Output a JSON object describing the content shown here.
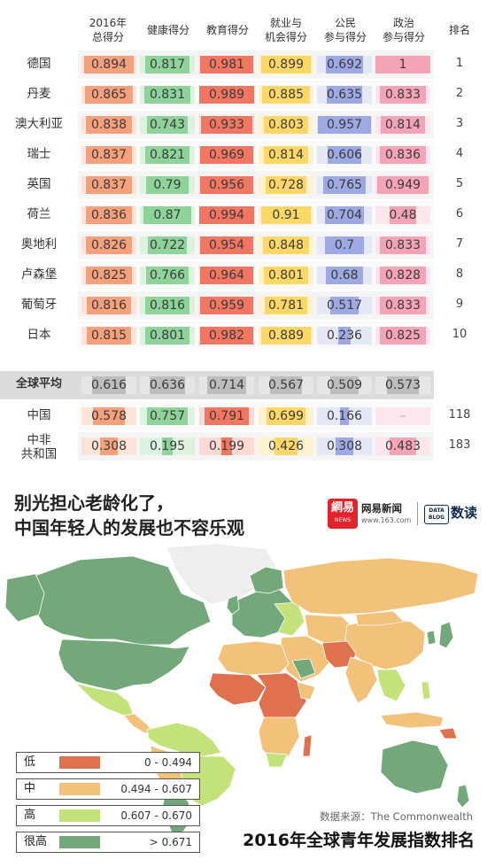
{
  "headers": {
    "overall": "2016年\n总得分",
    "health": "健康得分",
    "education": "教育得分",
    "employment": "就业与\n机会得分",
    "civic": "公民\n参与得分",
    "political": "政治\n参与得分",
    "rank": "排名"
  },
  "columns": [
    {
      "key": "overall",
      "color": "#f6a07c",
      "track": "#fde4d8"
    },
    {
      "key": "health",
      "color": "#8ed39a",
      "track": "#ddf3e0"
    },
    {
      "key": "education",
      "color": "#f27762",
      "track": "#fddbd4"
    },
    {
      "key": "employment",
      "color": "#fed766",
      "track": "#fff3cf"
    },
    {
      "key": "civic",
      "color": "#9ea8e2",
      "track": "#e5e8f7"
    },
    {
      "key": "political",
      "color": "#f4a4b6",
      "track": "#fde6ec"
    }
  ],
  "rows": [
    {
      "country": "德国",
      "values": [
        0.894,
        0.817,
        0.981,
        0.899,
        0.692,
        1
      ],
      "labels": [
        "0.894",
        "0.817",
        "0.981",
        "0.899",
        "0.692",
        "1"
      ],
      "rank": "1"
    },
    {
      "country": "丹麦",
      "values": [
        0.865,
        0.831,
        0.989,
        0.885,
        0.635,
        0.833
      ],
      "labels": [
        "0.865",
        "0.831",
        "0.989",
        "0.885",
        "0.635",
        "0.833"
      ],
      "rank": "2"
    },
    {
      "country": "澳大利亚",
      "values": [
        0.838,
        0.743,
        0.933,
        0.803,
        0.957,
        0.814
      ],
      "labels": [
        "0.838",
        "0.743",
        "0.933",
        "0.803",
        "0.957",
        "0.814"
      ],
      "rank": "3"
    },
    {
      "country": "瑞士",
      "values": [
        0.837,
        0.821,
        0.969,
        0.814,
        0.606,
        0.836
      ],
      "labels": [
        "0.837",
        "0.821",
        "0.969",
        "0.814",
        "0.606",
        "0.836"
      ],
      "rank": "4"
    },
    {
      "country": "英国",
      "values": [
        0.837,
        0.79,
        0.956,
        0.728,
        0.765,
        0.949
      ],
      "labels": [
        "0.837",
        "0.79",
        "0.956",
        "0.728",
        "0.765",
        "0.949"
      ],
      "rank": "5"
    },
    {
      "country": "荷兰",
      "values": [
        0.836,
        0.87,
        0.994,
        0.91,
        0.704,
        0.48
      ],
      "labels": [
        "0.836",
        "0.87",
        "0.994",
        "0.91",
        "0.704",
        "0.48"
      ],
      "rank": "6"
    },
    {
      "country": "奥地利",
      "values": [
        0.826,
        0.722,
        0.954,
        0.848,
        0.7,
        0.833
      ],
      "labels": [
        "0.826",
        "0.722",
        "0.954",
        "0.848",
        "0.7",
        "0.833"
      ],
      "rank": "7"
    },
    {
      "country": "卢森堡",
      "values": [
        0.825,
        0.766,
        0.964,
        0.801,
        0.68,
        0.828
      ],
      "labels": [
        "0.825",
        "0.766",
        "0.964",
        "0.801",
        "0.68",
        "0.828"
      ],
      "rank": "8"
    },
    {
      "country": "葡萄牙",
      "values": [
        0.816,
        0.816,
        0.959,
        0.781,
        0.517,
        0.833
      ],
      "labels": [
        "0.816",
        "0.816",
        "0.959",
        "0.781",
        "0.517",
        "0.833"
      ],
      "rank": "9"
    },
    {
      "country": "日本",
      "values": [
        0.815,
        0.801,
        0.982,
        0.889,
        0.236,
        0.825
      ],
      "labels": [
        "0.815",
        "0.801",
        "0.982",
        "0.889",
        "0.236",
        "0.825"
      ],
      "rank": "10"
    },
    {
      "country": "全球平均",
      "values": [
        0.616,
        0.636,
        0.714,
        0.567,
        0.509,
        0.573
      ],
      "labels": [
        "0.616",
        "0.636",
        "0.714",
        "0.567",
        "0.509",
        "0.573"
      ],
      "rank": "",
      "style": "average"
    },
    {
      "country": "中国",
      "values": [
        0.578,
        0.757,
        0.791,
        0.699,
        0.166,
        null
      ],
      "labels": [
        "0.578",
        "0.757",
        "0.791",
        "0.699",
        "0.166",
        "–"
      ],
      "rank": "118"
    },
    {
      "country": "中非\n共和国",
      "values": [
        0.308,
        0.195,
        0.199,
        0.426,
        0.308,
        0.483
      ],
      "labels": [
        "0.308",
        "0.195",
        "0.199",
        "0.426",
        "0.308",
        "0.483"
      ],
      "rank": "183"
    }
  ],
  "headline": {
    "line1": "别光担心老龄化了，",
    "line2": "中国年轻人的发展也不容乐观"
  },
  "brand": {
    "logo_text": "網易",
    "logo_small": "NEWS",
    "name": "网易新闻",
    "url": "www.163.com",
    "databox": "DATA\nBLOG",
    "read": "数读"
  },
  "legend": [
    {
      "label": "低",
      "range": "0 - 0.494",
      "color": "#e0714f"
    },
    {
      "label": "中",
      "range": "0.494 - 0.607",
      "color": "#f2c27a"
    },
    {
      "label": "高",
      "range": "0.607 - 0.670",
      "color": "#c4e27a"
    },
    {
      "label": "很高",
      "range": "> 0.671",
      "color": "#73a97a"
    }
  ],
  "source": "数据来源：The Commonwealth",
  "bottom_title": "2016年全球青年发展指数排名",
  "map_colors": {
    "low": "#e0714f",
    "mid": "#f2c27a",
    "high": "#c4e27a",
    "vhigh": "#73a97a",
    "nodata": "#eeeeee"
  },
  "chart_data": {
    "type": "table",
    "columns": [
      "2016年总得分",
      "健康得分",
      "教育得分",
      "就业与机会得分",
      "公民参与得分",
      "政治参与得分",
      "排名"
    ],
    "rows": [
      [
        "德国",
        0.894,
        0.817,
        0.981,
        0.899,
        0.692,
        1,
        1
      ],
      [
        "丹麦",
        0.865,
        0.831,
        0.989,
        0.885,
        0.635,
        0.833,
        2
      ],
      [
        "澳大利亚",
        0.838,
        0.743,
        0.933,
        0.803,
        0.957,
        0.814,
        3
      ],
      [
        "瑞士",
        0.837,
        0.821,
        0.969,
        0.814,
        0.606,
        0.836,
        4
      ],
      [
        "英国",
        0.837,
        0.79,
        0.956,
        0.728,
        0.765,
        0.949,
        5
      ],
      [
        "荷兰",
        0.836,
        0.87,
        0.994,
        0.91,
        0.704,
        0.48,
        6
      ],
      [
        "奥地利",
        0.826,
        0.722,
        0.954,
        0.848,
        0.7,
        0.833,
        7
      ],
      [
        "卢森堡",
        0.825,
        0.766,
        0.964,
        0.801,
        0.68,
        0.828,
        8
      ],
      [
        "葡萄牙",
        0.816,
        0.816,
        0.959,
        0.781,
        0.517,
        0.833,
        9
      ],
      [
        "日本",
        0.815,
        0.801,
        0.982,
        0.889,
        0.236,
        0.825,
        10
      ],
      [
        "全球平均",
        0.616,
        0.636,
        0.714,
        0.567,
        0.509,
        0.573,
        null
      ],
      [
        "中国",
        0.578,
        0.757,
        0.791,
        0.699,
        0.166,
        null,
        118
      ],
      [
        "中非共和国",
        0.308,
        0.195,
        0.199,
        0.426,
        0.308,
        0.483,
        183
      ]
    ]
  }
}
